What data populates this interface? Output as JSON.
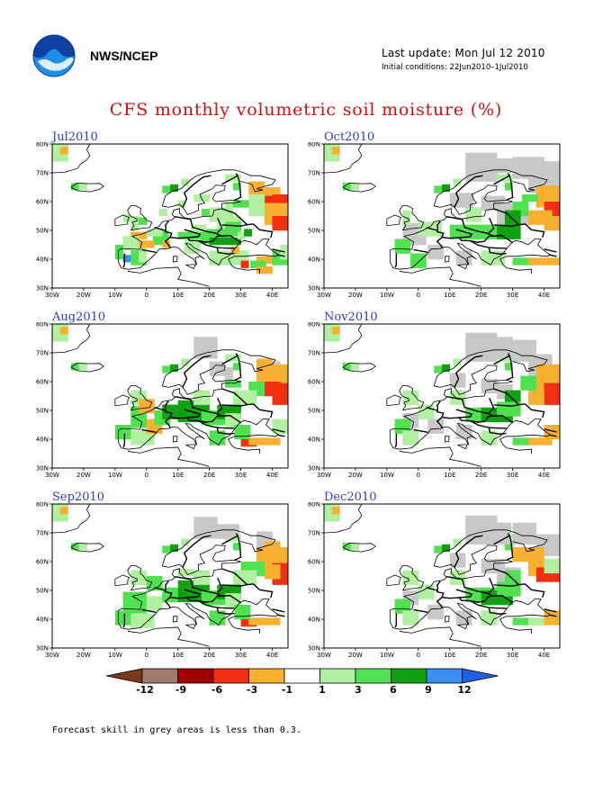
{
  "header": {
    "org": "NWS/NCEP",
    "last_update": "Last update: Mon Jul 12 2010",
    "initial_conditions": "Initial conditions: 22Jun2010–1Jul2010",
    "logo_icon": "noaa-logo-icon"
  },
  "title": "CFS monthly volumetric soil moisture (%)",
  "axes": {
    "lon_labels": [
      "30W",
      "20W",
      "10W",
      "0",
      "10E",
      "20E",
      "30E",
      "40E"
    ],
    "lat_labels": [
      "80N",
      "70N",
      "60N",
      "50N",
      "40N",
      "30N"
    ]
  },
  "panels": [
    {
      "label": "Jul2010"
    },
    {
      "label": "Oct2010"
    },
    {
      "label": "Aug2010"
    },
    {
      "label": "Nov2010"
    },
    {
      "label": "Sep2010"
    },
    {
      "label": "Dec2010"
    }
  ],
  "legend": {
    "labels": [
      "-12",
      "-9",
      "-6",
      "-3",
      "-1",
      "1",
      "3",
      "6",
      "9",
      "12"
    ],
    "colors": [
      "#7a3a1a",
      "#a07a6a",
      "#a00000",
      "#f03010",
      "#f8b030",
      "#ffffff",
      "#b0f0a0",
      "#50e050",
      "#10a010",
      "#3a90f0",
      "#2060e0"
    ]
  },
  "footnote": "Forecast skill in grey areas is less than 0.3."
}
